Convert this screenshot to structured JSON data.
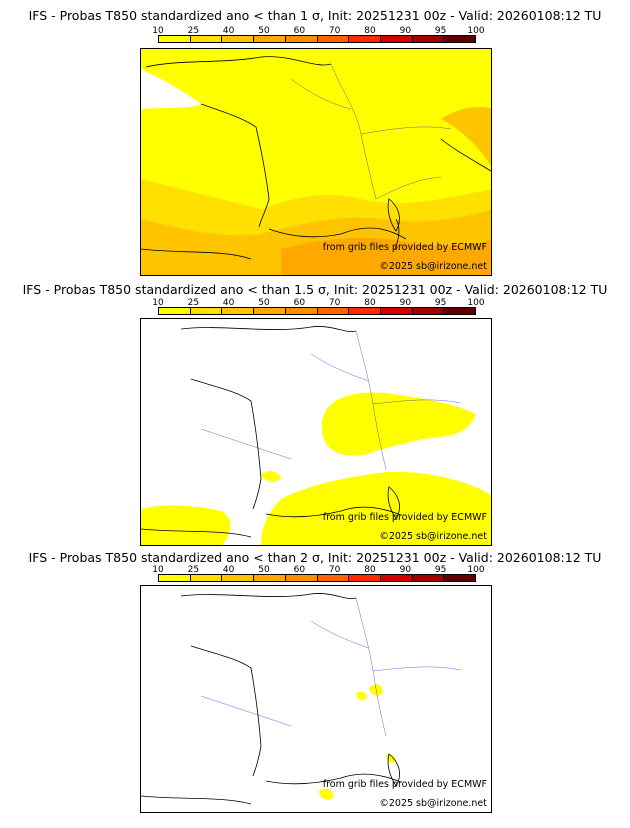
{
  "colorbar": {
    "ticks": [
      "10",
      "25",
      "40",
      "50",
      "60",
      "70",
      "80",
      "90",
      "95",
      "100"
    ],
    "colors": [
      "#ffff00",
      "#ffe000",
      "#ffc400",
      "#ffa800",
      "#ff8c00",
      "#ff6400",
      "#ff2a00",
      "#d40000",
      "#a00000",
      "#600000"
    ]
  },
  "panels": [
    {
      "title": "IFS - Probas T850  standardized ano < than 1 σ, Init: 20251231 00z - Valid: 20260108:12 TU",
      "credit_source": "from grib files provided by ECMWF",
      "credit_copyright": "©2025 sb@irizone.net",
      "coverage": "high"
    },
    {
      "title": "IFS - Probas T850  standardized ano < than 1.5 σ, Init: 20251231 00z - Valid: 20260108:12 TU",
      "credit_source": "from grib files provided by ECMWF",
      "credit_copyright": "©2025 sb@irizone.net",
      "coverage": "medium"
    },
    {
      "title": "IFS - Probas T850  standardized ano < than 2 σ, Init: 20251231 00z - Valid: 20260108:12 TU",
      "credit_source": "from grib files provided by ECMWF",
      "credit_copyright": "©2025 sb@irizone.net",
      "coverage": "low"
    }
  ]
}
